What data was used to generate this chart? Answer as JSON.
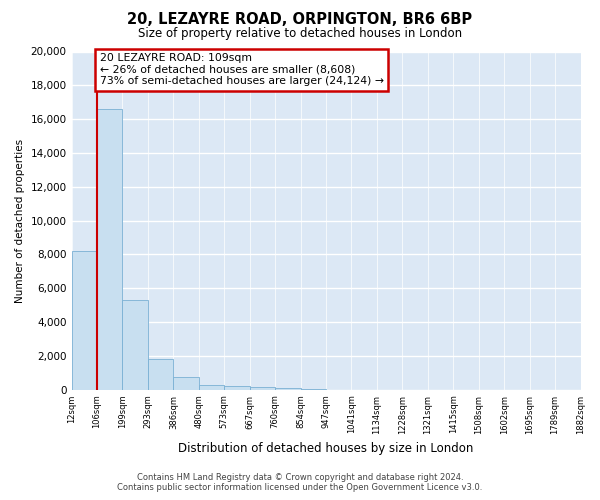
{
  "title": "20, LEZAYRE ROAD, ORPINGTON, BR6 6BP",
  "subtitle": "Size of property relative to detached houses in London",
  "xlabel": "Distribution of detached houses by size in London",
  "ylabel": "Number of detached properties",
  "bar_values": [
    8200,
    16600,
    5300,
    1800,
    750,
    300,
    200,
    150,
    100,
    50,
    0,
    0,
    0,
    0,
    0,
    0,
    0,
    0,
    0,
    0
  ],
  "bar_labels": [
    "12sqm",
    "106sqm",
    "199sqm",
    "293sqm",
    "386sqm",
    "480sqm",
    "573sqm",
    "667sqm",
    "760sqm",
    "854sqm",
    "947sqm",
    "1041sqm",
    "1134sqm",
    "1228sqm",
    "1321sqm",
    "1415sqm",
    "1508sqm",
    "1602sqm",
    "1695sqm",
    "1789sqm",
    "1882sqm"
  ],
  "bar_color": "#c8dff0",
  "bar_edge_color": "#7ab0d4",
  "property_line_color": "#cc0000",
  "annotation_title": "20 LEZAYRE ROAD: 109sqm",
  "annotation_line1": "← 26% of detached houses are smaller (8,608)",
  "annotation_line2": "73% of semi-detached houses are larger (24,124) →",
  "annotation_box_facecolor": "#ffffff",
  "annotation_box_edgecolor": "#cc0000",
  "ylim": [
    0,
    20000
  ],
  "yticks": [
    0,
    2000,
    4000,
    6000,
    8000,
    10000,
    12000,
    14000,
    16000,
    18000,
    20000
  ],
  "footer_line1": "Contains HM Land Registry data © Crown copyright and database right 2024.",
  "footer_line2": "Contains public sector information licensed under the Open Government Licence v3.0.",
  "fig_bg_color": "#ffffff",
  "plot_bg_color": "#dce8f5",
  "grid_color": "#ffffff",
  "tick_label_color": "#000000",
  "title_color": "#000000"
}
